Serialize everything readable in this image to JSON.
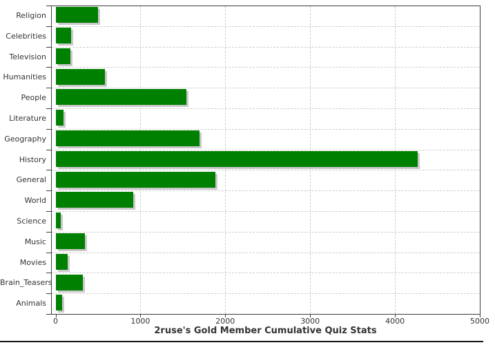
{
  "colors": {
    "bar": "#008000",
    "bar_shadow": "#c9c9c9",
    "grid": "#cccccc",
    "axis": "#3c3c3c",
    "text": "#333333",
    "background": "#ffffff",
    "bottom_rule": "#111111"
  },
  "chart_data": {
    "type": "bar",
    "orientation": "horizontal",
    "title": "2ruse's Gold Member Cumulative Quiz Stats",
    "xlabel": "2ruse's Gold Member Cumulative Quiz Stats",
    "ylabel": "",
    "categories": [
      "Religion",
      "Celebrities",
      "Television",
      "Humanities",
      "People",
      "Literature",
      "Geography",
      "History",
      "General",
      "World",
      "Science",
      "Music",
      "Movies",
      "Brain_Teasers",
      "Animals"
    ],
    "values": [
      500,
      185,
      175,
      580,
      1540,
      90,
      1700,
      4270,
      1880,
      915,
      60,
      345,
      145,
      325,
      75
    ],
    "xlim": [
      0,
      5000
    ],
    "x_ticks": [
      0,
      1000,
      2000,
      3000,
      4000,
      5000
    ],
    "x_tick_labels": [
      "0",
      "1000",
      "2000",
      "3000",
      "4000",
      "5000"
    ],
    "grid": "dashed",
    "legend": "none"
  }
}
